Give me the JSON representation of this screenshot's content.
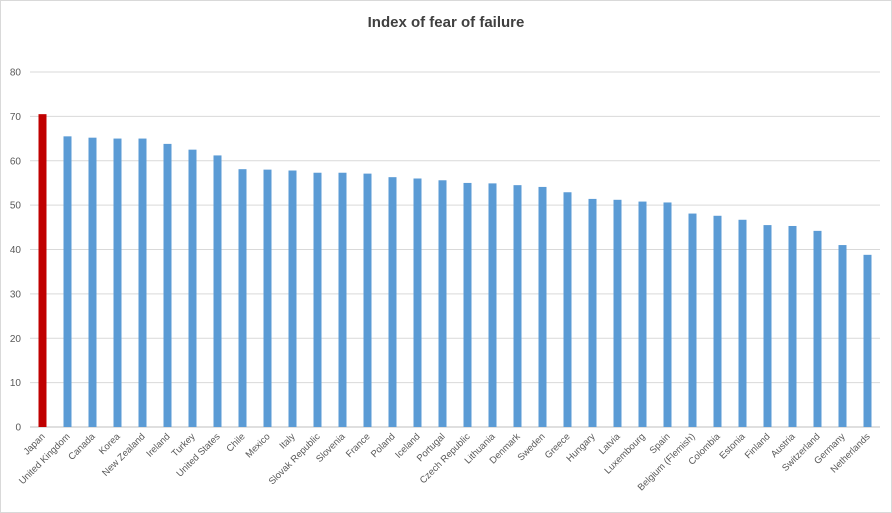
{
  "chart_data": {
    "type": "bar",
    "title": "Index of fear of failure",
    "xlabel": "",
    "ylabel": "",
    "ylim": [
      0,
      80
    ],
    "yticks": [
      0,
      10,
      20,
      30,
      40,
      50,
      60,
      70,
      80
    ],
    "grid": true,
    "legend": "none",
    "highlight_color": "#c00000",
    "bar_color": "#5b9bd5",
    "categories": [
      "Japan",
      "United Kingdom",
      "Canada",
      "Korea",
      "New Zealand",
      "Ireland",
      "Turkey",
      "United States",
      "Chile",
      "Mexico",
      "Italy",
      "Slovak Republic",
      "Slovenia",
      "France",
      "Poland",
      "Iceland",
      "Portugal",
      "Czech Republic",
      "Lithuania",
      "Denmark",
      "Sweden",
      "Greece",
      "Hungary",
      "Latvia",
      "Luxembourg",
      "Spain",
      "Belgium (Flemish)",
      "Colombia",
      "Estonia",
      "Finland",
      "Austria",
      "Switzerland",
      "Germany",
      "Netherlands"
    ],
    "values": [
      70.5,
      65.5,
      65.2,
      65.0,
      65.0,
      63.8,
      62.5,
      61.2,
      58.1,
      58.0,
      57.8,
      57.3,
      57.3,
      57.1,
      56.3,
      56.0,
      55.6,
      55.0,
      54.9,
      54.5,
      54.1,
      52.9,
      51.4,
      51.2,
      50.8,
      50.6,
      48.1,
      47.6,
      46.7,
      45.5,
      45.3,
      44.2,
      41.0,
      38.8
    ],
    "highlighted": [
      "Japan"
    ]
  }
}
